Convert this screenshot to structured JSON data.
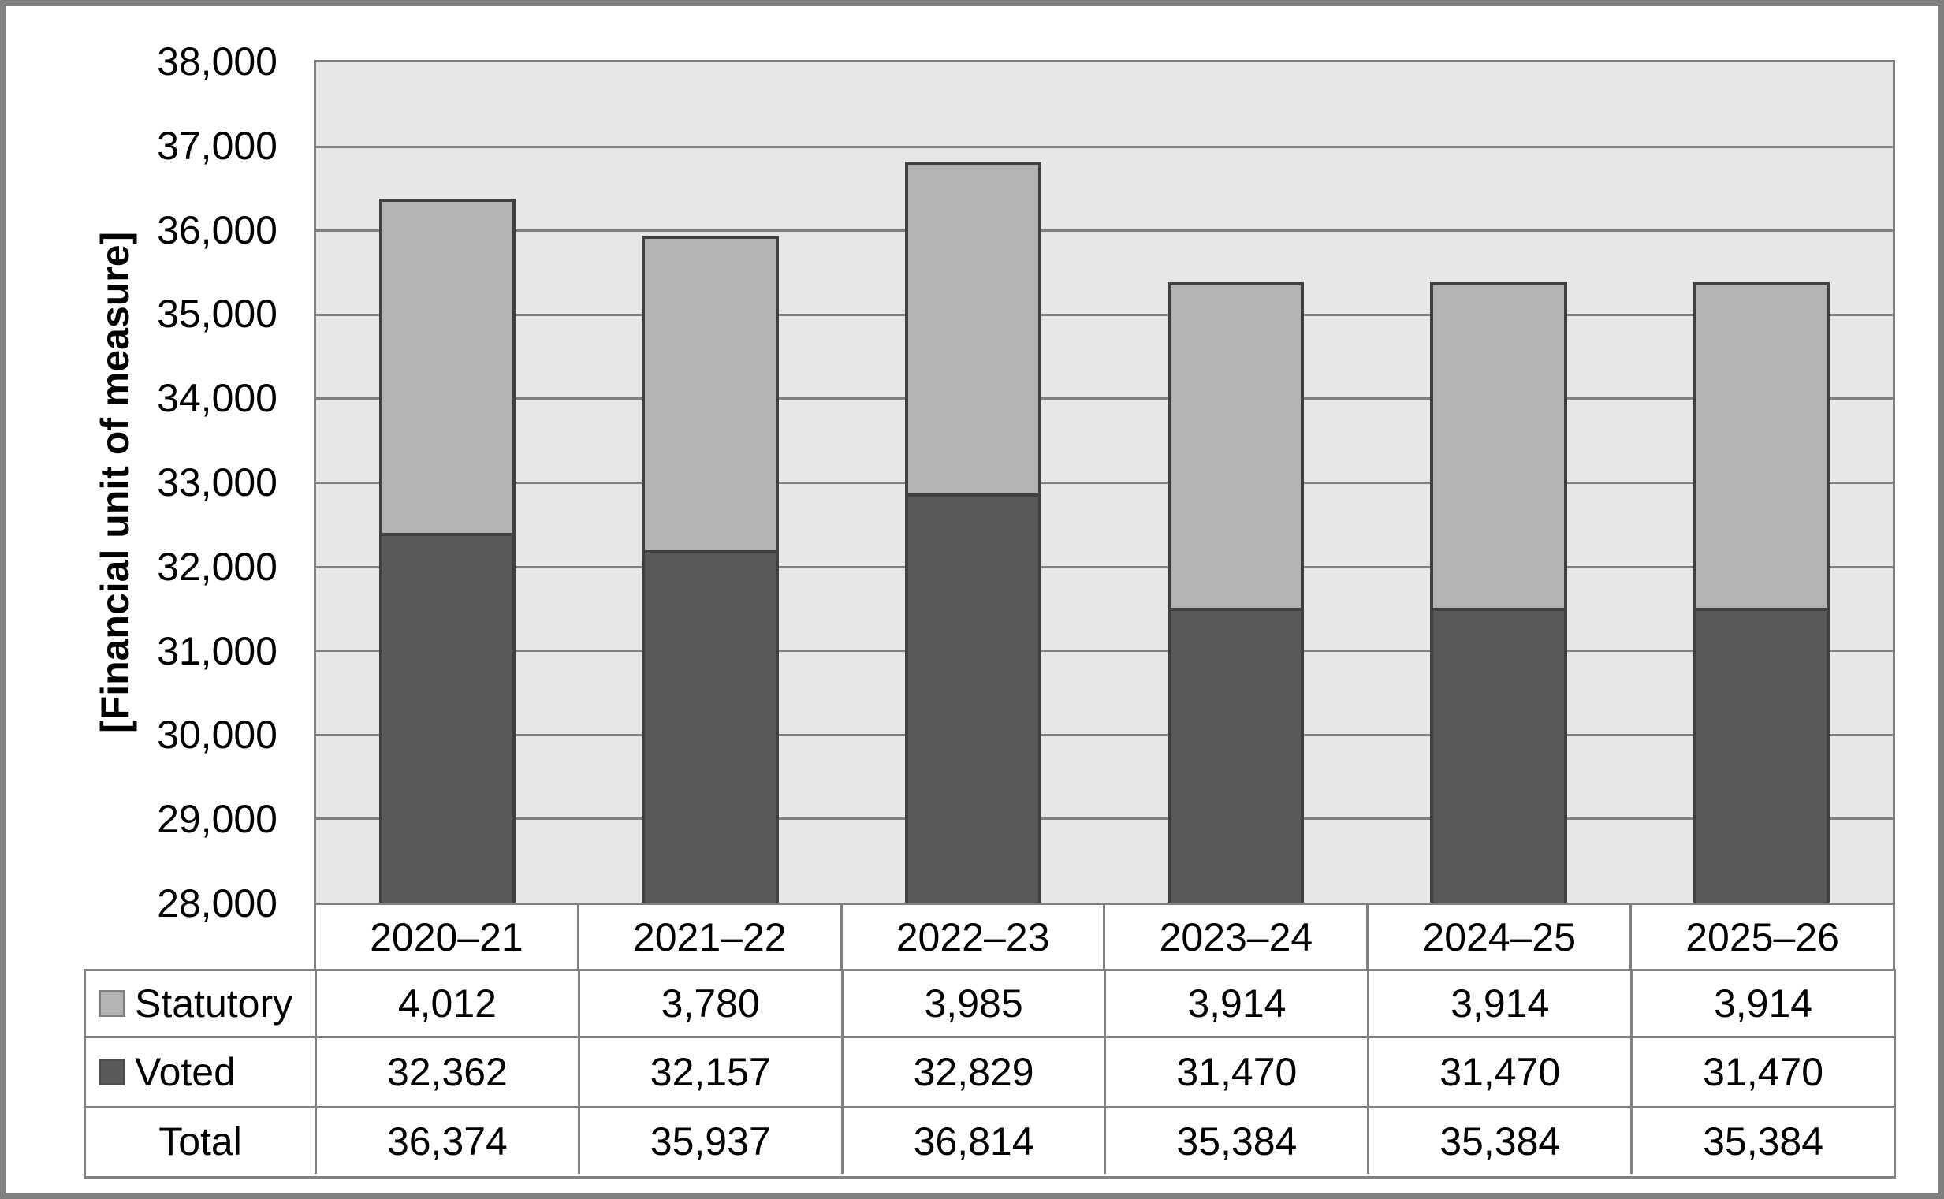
{
  "y_axis": {
    "title": "[Financial unit of measure]",
    "ticks": [
      "38,000",
      "37,000",
      "36,000",
      "35,000",
      "34,000",
      "33,000",
      "32,000",
      "31,000",
      "30,000",
      "29,000",
      "28,000"
    ]
  },
  "table": {
    "header": [
      "2020–21",
      "2021–22",
      "2022–23",
      "2023–24",
      "2024–25",
      "2025–26"
    ],
    "rows": [
      {
        "label": "Statutory",
        "swatch_color": "#b3b3b3",
        "values": [
          "4,012",
          "3,780",
          "3,985",
          "3,914",
          "3,914",
          "3,914"
        ]
      },
      {
        "label": "Voted",
        "swatch_color": "#595959",
        "values": [
          "32,362",
          "32,157",
          "32,829",
          "31,470",
          "31,470",
          "31,470"
        ]
      },
      {
        "label": "Total",
        "swatch_color": null,
        "values": [
          "36,374",
          "35,937",
          "36,814",
          "35,384",
          "35,384",
          "35,384"
        ]
      }
    ]
  },
  "chart_data": {
    "type": "bar",
    "stacked": true,
    "title": "",
    "categories": [
      "2020–21",
      "2021–22",
      "2022–23",
      "2023–24",
      "2024–25",
      "2025–26"
    ],
    "series": [
      {
        "name": "Voted",
        "color": "#595959",
        "values": [
          32362,
          32157,
          32829,
          31470,
          31470,
          31470
        ]
      },
      {
        "name": "Statutory",
        "color": "#b3b3b3",
        "values": [
          4012,
          3780,
          3985,
          3914,
          3914,
          3914
        ]
      }
    ],
    "totals": [
      36374,
      35937,
      36814,
      35384,
      35384,
      35384
    ],
    "xlabel": "",
    "ylabel": "[Financial unit of measure]",
    "ylim": [
      28000,
      38000
    ],
    "ytick_interval": 1000,
    "grid": true,
    "legend_position": "table-left",
    "plot_background": "#e7e7e7",
    "gridline_color": "#808080",
    "bar_border_color": "#3f3f3f"
  }
}
